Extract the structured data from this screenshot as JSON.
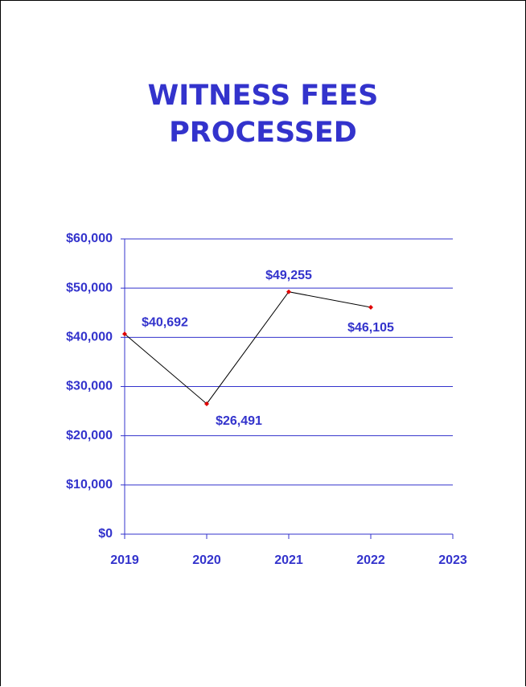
{
  "chart_data": {
    "type": "line",
    "title": "WITNESS FEES PROCESSED",
    "categories": [
      "2019",
      "2020",
      "2021",
      "2022",
      "2023"
    ],
    "values": [
      40692,
      26491,
      49255,
      46105,
      null
    ],
    "value_labels": [
      "$40,692",
      "$26,491",
      "$49,255",
      "$46,105",
      null
    ],
    "line_color": "#000000",
    "marker_color": "#e00000",
    "text_color": "#3333cc",
    "grid_color": "#3333cc",
    "ylim": [
      0,
      60000
    ],
    "yticks": [
      {
        "value": 0,
        "label": "$0"
      },
      {
        "value": 10000,
        "label": "$10,000"
      },
      {
        "value": 20000,
        "label": "$20,000"
      },
      {
        "value": 30000,
        "label": "$30,000"
      },
      {
        "value": 40000,
        "label": "$40,000"
      },
      {
        "value": 50000,
        "label": "$50,000"
      },
      {
        "value": 60000,
        "label": "$60,000"
      }
    ],
    "grid": true
  }
}
